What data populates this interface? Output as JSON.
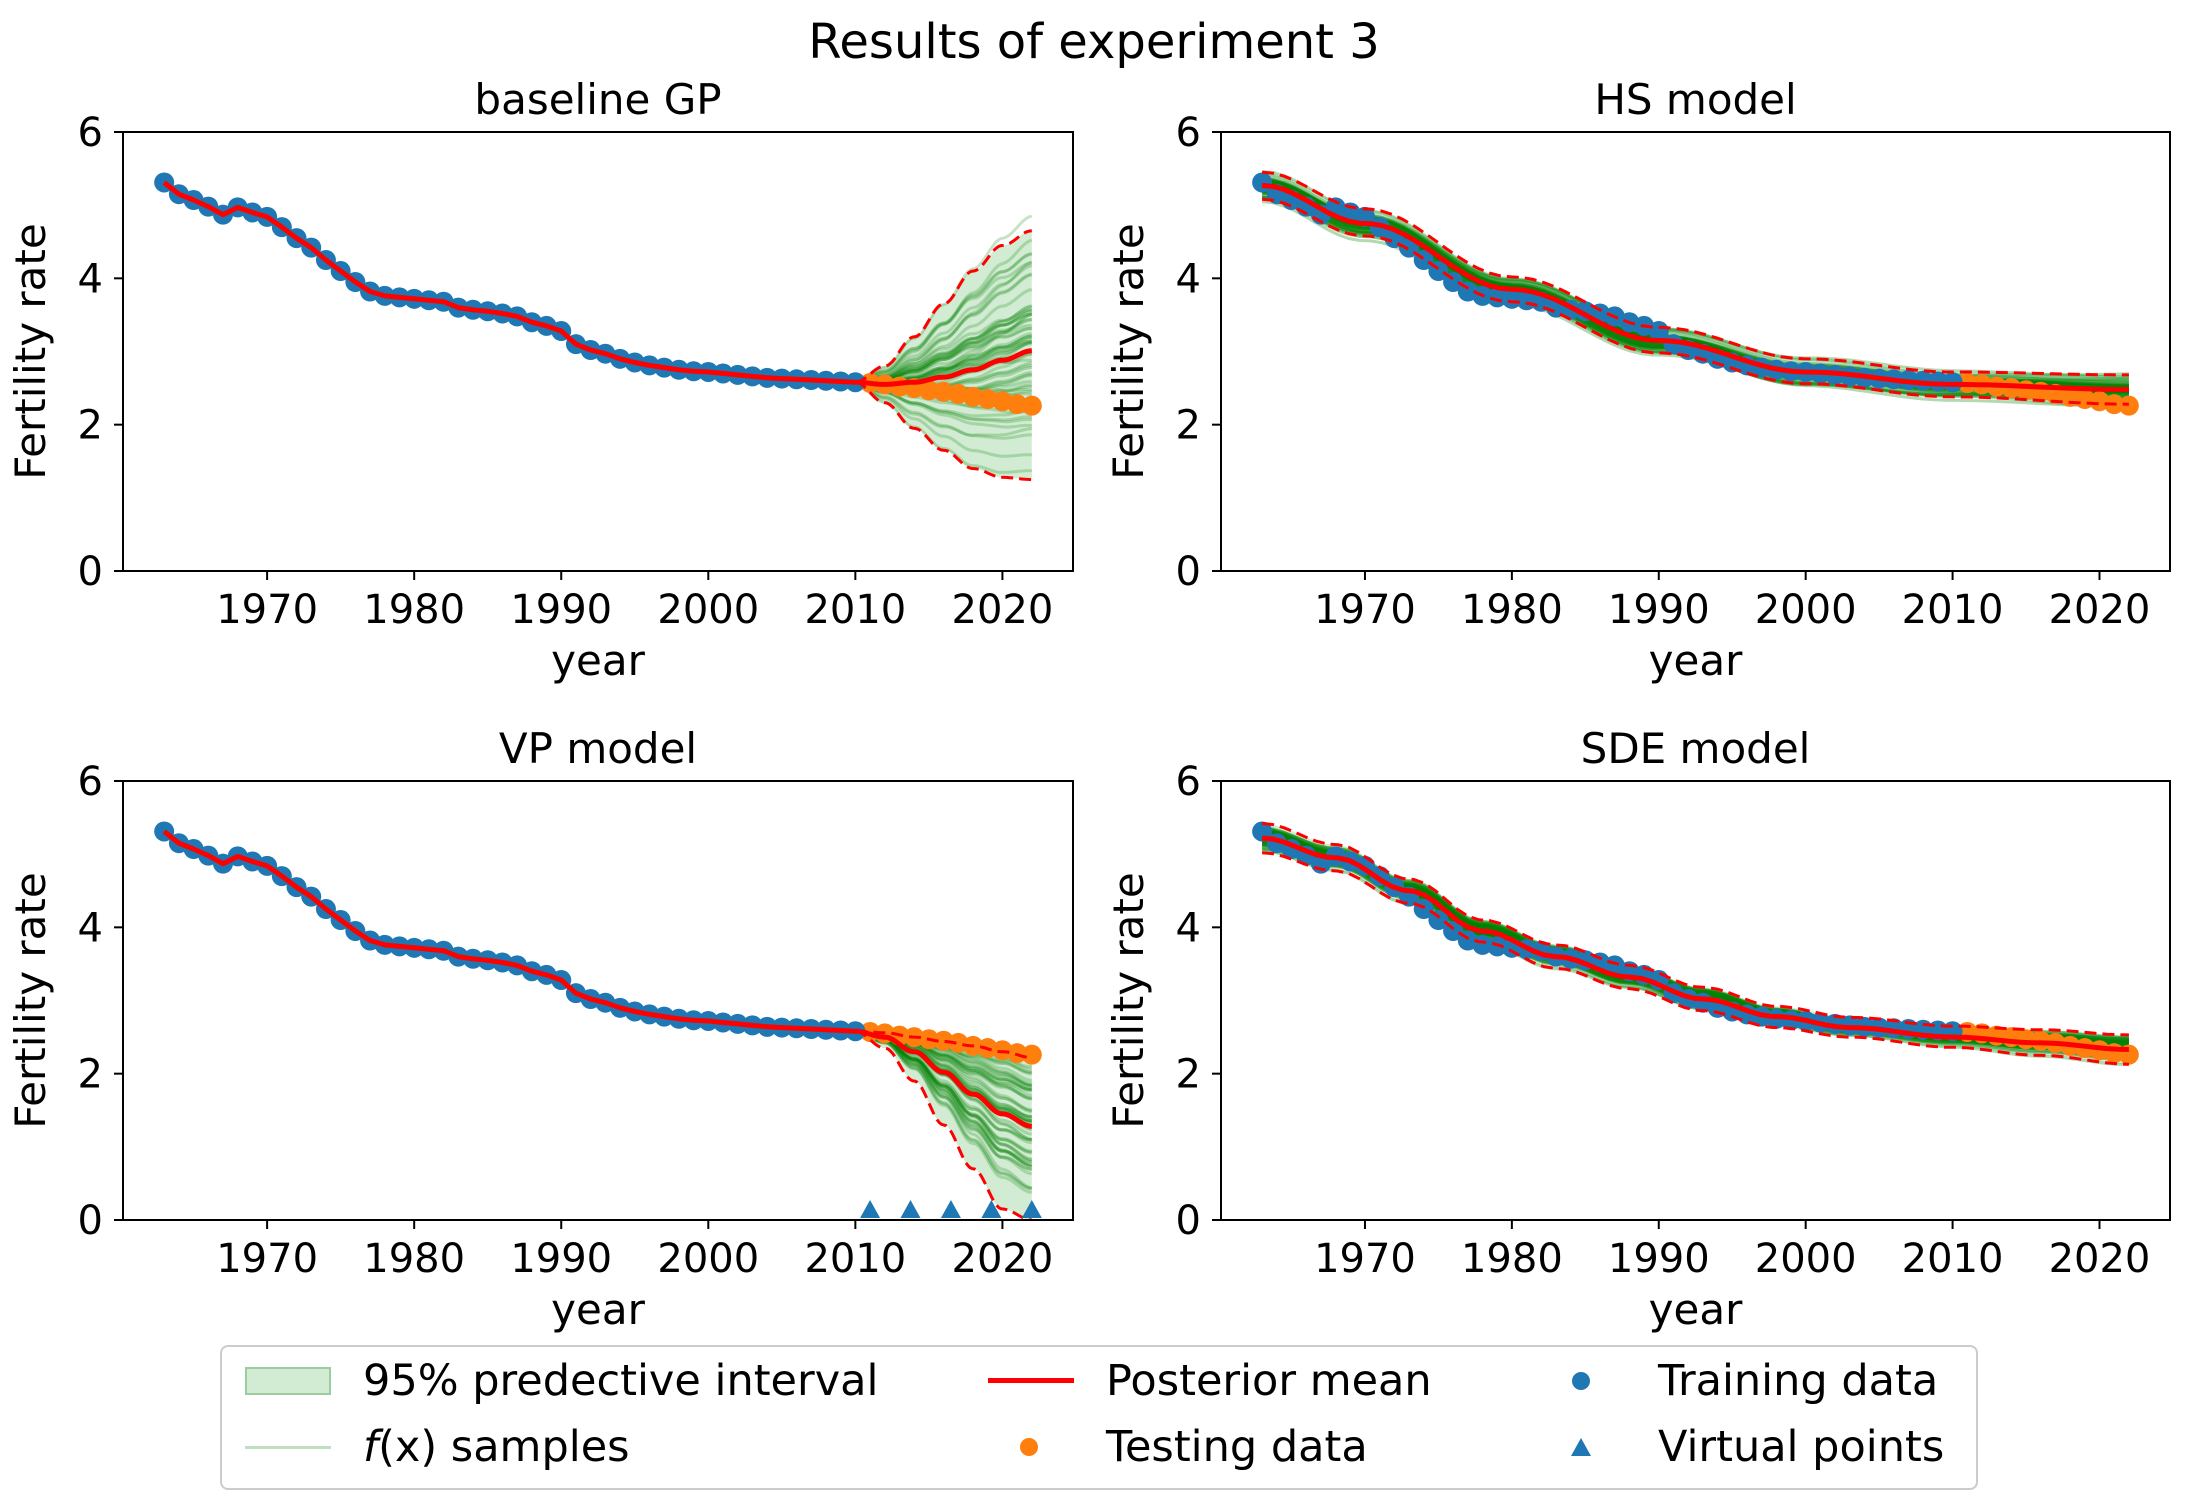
{
  "figure_title": "Results of experiment 3",
  "colors": {
    "training": "#1f77b4",
    "testing": "#ff7f0e",
    "mean": "#ff0000",
    "band": "#4caf50",
    "samples": "#008000"
  },
  "legend": {
    "interval": "95% predective interval",
    "samples_prefix": "f",
    "samples_arg": "(x)",
    "samples_suffix": " samples",
    "mean": "Posterior mean",
    "testing": "Testing data",
    "training": "Training data",
    "virtual": "Virtual points"
  },
  "chart_data": [
    {
      "type": "line",
      "title": "baseline GP",
      "xlabel": "year",
      "ylabel": "Fertility rate",
      "xlim": [
        1960.2,
        2024.8
      ],
      "ylim": [
        0,
        6
      ],
      "xticks": [
        1970,
        1980,
        1990,
        2000,
        2010,
        2020
      ],
      "yticks": [
        0,
        2,
        4,
        6
      ],
      "training_data": {
        "x": [
          1963,
          1964,
          1965,
          1966,
          1967,
          1968,
          1969,
          1970,
          1971,
          1972,
          1973,
          1974,
          1975,
          1976,
          1977,
          1978,
          1979,
          1980,
          1981,
          1982,
          1983,
          1984,
          1985,
          1986,
          1987,
          1988,
          1989,
          1990,
          1991,
          1992,
          1993,
          1994,
          1995,
          1996,
          1997,
          1998,
          1999,
          2000,
          2001,
          2002,
          2003,
          2004,
          2005,
          2006,
          2007,
          2008,
          2009,
          2010
        ],
        "y": [
          5.31,
          5.15,
          5.07,
          4.98,
          4.87,
          4.97,
          4.9,
          4.84,
          4.7,
          4.55,
          4.42,
          4.25,
          4.1,
          3.95,
          3.82,
          3.76,
          3.74,
          3.72,
          3.7,
          3.68,
          3.6,
          3.57,
          3.55,
          3.52,
          3.48,
          3.4,
          3.35,
          3.28,
          3.1,
          3.02,
          2.97,
          2.9,
          2.85,
          2.81,
          2.78,
          2.75,
          2.73,
          2.72,
          2.7,
          2.68,
          2.66,
          2.64,
          2.63,
          2.62,
          2.61,
          2.6,
          2.59,
          2.58
        ]
      },
      "testing_data": {
        "x": [
          2011,
          2012,
          2013,
          2014,
          2015,
          2016,
          2017,
          2018,
          2019,
          2020,
          2021,
          2022
        ],
        "y": [
          2.57,
          2.55,
          2.52,
          2.5,
          2.47,
          2.45,
          2.42,
          2.38,
          2.35,
          2.32,
          2.28,
          2.26
        ]
      },
      "posterior_mean": {
        "x": [
          2010,
          2012,
          2014,
          2016,
          2018,
          2020,
          2022
        ],
        "y": [
          2.58,
          2.55,
          2.58,
          2.65,
          2.75,
          2.88,
          3.01
        ]
      },
      "interval_upper": {
        "x": [
          2010,
          2012,
          2014,
          2016,
          2018,
          2020,
          2022
        ],
        "y": [
          2.58,
          2.8,
          3.2,
          3.65,
          4.1,
          4.45,
          4.65
        ]
      },
      "interval_lower": {
        "x": [
          2010,
          2012,
          2014,
          2016,
          2018,
          2020,
          2022
        ],
        "y": [
          2.58,
          2.3,
          1.95,
          1.65,
          1.4,
          1.28,
          1.25
        ]
      }
    },
    {
      "type": "line",
      "title": "HS model",
      "xlabel": "year",
      "ylabel": "Fertility rate",
      "xlim": [
        1960.2,
        2024.8
      ],
      "ylim": [
        0,
        6
      ],
      "xticks": [
        1970,
        1980,
        1990,
        2000,
        2010,
        2020
      ],
      "yticks": [
        0,
        2,
        4,
        6
      ],
      "posterior_mean": {
        "x": [
          1963,
          1970,
          1980,
          1990,
          2000,
          2010,
          2022
        ],
        "y": [
          5.27,
          4.75,
          3.85,
          3.15,
          2.72,
          2.55,
          2.48
        ]
      },
      "interval_upper": {
        "x": [
          1963,
          1970,
          1980,
          1990,
          2000,
          2010,
          2022
        ],
        "y": [
          5.45,
          4.95,
          4.02,
          3.33,
          2.9,
          2.72,
          2.68
        ]
      },
      "interval_lower": {
        "x": [
          1963,
          1970,
          1980,
          1990,
          2000,
          2010,
          2022
        ],
        "y": [
          5.08,
          4.58,
          3.68,
          2.98,
          2.56,
          2.38,
          2.28
        ]
      }
    },
    {
      "type": "line",
      "title": "VP model",
      "xlabel": "year",
      "ylabel": "Fertility rate",
      "xlim": [
        1960.2,
        2024.8
      ],
      "ylim": [
        0,
        6
      ],
      "xticks": [
        1970,
        1980,
        1990,
        2000,
        2010,
        2020
      ],
      "yticks": [
        0,
        2,
        4,
        6
      ],
      "virtual_points": {
        "x": [
          2011,
          2013.75,
          2016.5,
          2019.25,
          2022
        ],
        "y": [
          0,
          0,
          0,
          0,
          0
        ]
      },
      "posterior_mean": {
        "x": [
          2010,
          2012,
          2014,
          2016,
          2018,
          2020,
          2022
        ],
        "y": [
          2.58,
          2.5,
          2.3,
          2.02,
          1.72,
          1.45,
          1.28
        ]
      },
      "interval_upper": {
        "x": [
          2010,
          2012,
          2014,
          2016,
          2018,
          2020,
          2022
        ],
        "y": [
          2.58,
          2.56,
          2.5,
          2.44,
          2.38,
          2.3,
          2.22
        ]
      },
      "interval_lower": {
        "x": [
          2010,
          2012,
          2014,
          2016,
          2018,
          2020,
          2022
        ],
        "y": [
          2.58,
          2.35,
          1.9,
          1.3,
          0.7,
          0.15,
          0
        ]
      }
    },
    {
      "type": "line",
      "title": "SDE model",
      "xlabel": "year",
      "ylabel": "Fertility rate",
      "xlim": [
        1960.2,
        2024.8
      ],
      "ylim": [
        0,
        6
      ],
      "xticks": [
        1970,
        1980,
        1990,
        2000,
        2010,
        2020
      ],
      "yticks": [
        0,
        2,
        4,
        6
      ],
      "posterior_mean": {
        "x": [
          1963,
          1968,
          1973,
          1978,
          1983,
          1988,
          1993,
          1998,
          2003,
          2010,
          2016,
          2022
        ],
        "y": [
          5.22,
          4.95,
          4.5,
          3.95,
          3.6,
          3.32,
          3.02,
          2.78,
          2.63,
          2.5,
          2.42,
          2.33
        ]
      },
      "interval_upper": {
        "x": [
          1963,
          1968,
          1973,
          1978,
          1983,
          1988,
          1993,
          1998,
          2003,
          2010,
          2016,
          2022
        ],
        "y": [
          5.42,
          5.13,
          4.66,
          4.1,
          3.76,
          3.48,
          3.18,
          2.92,
          2.77,
          2.65,
          2.6,
          2.53
        ]
      },
      "interval_lower": {
        "x": [
          1963,
          1968,
          1973,
          1978,
          1983,
          1988,
          1993,
          1998,
          2003,
          2010,
          2016,
          2022
        ],
        "y": [
          5.02,
          4.77,
          4.33,
          3.8,
          3.44,
          3.16,
          2.86,
          2.63,
          2.5,
          2.36,
          2.25,
          2.13
        ]
      }
    }
  ]
}
